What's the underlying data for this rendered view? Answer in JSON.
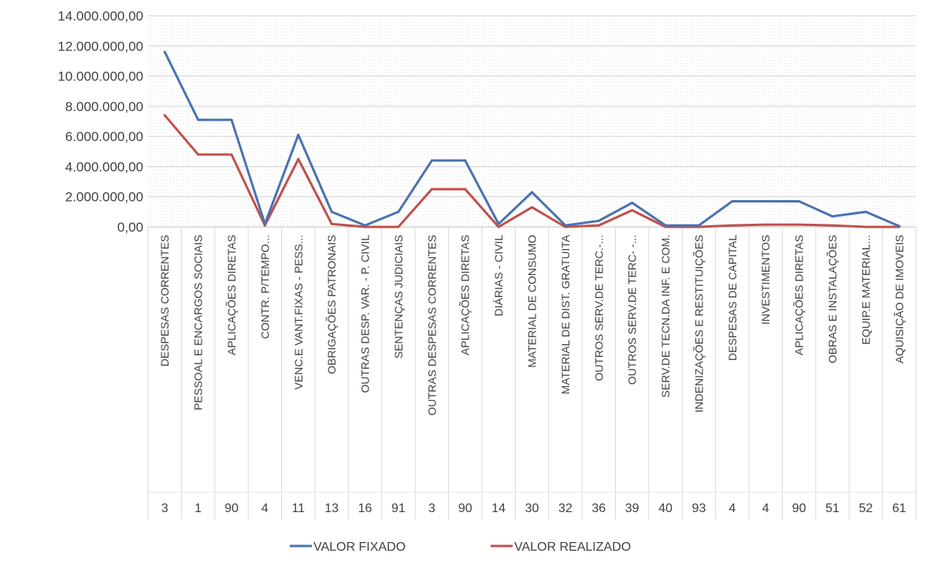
{
  "chart_data": {
    "type": "line",
    "title": "",
    "xlabel": "",
    "ylabel": "",
    "ylim": [
      0,
      14000000
    ],
    "y_ticks": [
      {
        "value": 0,
        "label": "0,00"
      },
      {
        "value": 2000000,
        "label": "2.000.000,00"
      },
      {
        "value": 4000000,
        "label": "4.000.000,00"
      },
      {
        "value": 6000000,
        "label": "6.000.000,00"
      },
      {
        "value": 8000000,
        "label": "8.000.000,00"
      },
      {
        "value": 10000000,
        "label": "10.000.000,00"
      },
      {
        "value": 12000000,
        "label": "12.000.000,00"
      },
      {
        "value": 14000000,
        "label": "14.000.000,00"
      }
    ],
    "grid": true,
    "legend_position": "bottom",
    "categories": [
      {
        "name": "DESPESAS CORRENTES",
        "code": "3"
      },
      {
        "name": "PESSOAL E ENCARGOS SOCIAIS",
        "code": "1"
      },
      {
        "name": "APLICAÇÕES DIRETAS",
        "code": "90"
      },
      {
        "name": "CONTR. P/TEMPO...",
        "code": "4"
      },
      {
        "name": "VENC.E VANT.FIXAS - PESS...",
        "code": "11"
      },
      {
        "name": "OBRIGAÇÕES PATRONAIS",
        "code": "13"
      },
      {
        "name": "OUTRAS DESP. VAR. - P. CIVIL",
        "code": "16"
      },
      {
        "name": "SENTENÇAS JUDICIAIS",
        "code": "91"
      },
      {
        "name": "OUTRAS DESPESAS CORRENTES",
        "code": "3"
      },
      {
        "name": "APLICAÇÕES DIRETAS",
        "code": "90"
      },
      {
        "name": "DIÁRIAS - CIVIL",
        "code": "14"
      },
      {
        "name": "MATERIAL DE CONSUMO",
        "code": "30"
      },
      {
        "name": "MATERIAL DE DIST. GRATUITA",
        "code": "32"
      },
      {
        "name": "OUTROS SERV.DE TERC.-...",
        "code": "36"
      },
      {
        "name": "OUTROS SERV.DE TERC- -...",
        "code": "39"
      },
      {
        "name": "SERV.DE TECN.DA INF. E COM.",
        "code": "40"
      },
      {
        "name": "INDENIZAÇÕES E RESTITUIÇÕES",
        "code": "93"
      },
      {
        "name": "DESPESAS DE CAPITAL",
        "code": "4"
      },
      {
        "name": "INVESTIMENTOS",
        "code": "4"
      },
      {
        "name": "APLICAÇÕES DIRETAS",
        "code": "90"
      },
      {
        "name": "OBRAS E INSTALAÇÕES",
        "code": "51"
      },
      {
        "name": "EQUIP.E MATERIAL...",
        "code": "52"
      },
      {
        "name": "AQUISIÇÃO DE IMOVEIS",
        "code": "61"
      }
    ],
    "series": [
      {
        "name": "VALOR FIXADO",
        "color": "#4a72b0",
        "values": [
          11600000,
          7100000,
          7100000,
          200000,
          6100000,
          1000000,
          100000,
          1000000,
          4400000,
          4400000,
          200000,
          2300000,
          100000,
          400000,
          1600000,
          100000,
          100000,
          1700000,
          1700000,
          1700000,
          700000,
          1000000,
          50000
        ]
      },
      {
        "name": "VALOR REALIZADO",
        "color": "#c0504d",
        "values": [
          7400000,
          4800000,
          4800000,
          100000,
          4500000,
          200000,
          0,
          0,
          2500000,
          2500000,
          0,
          1300000,
          0,
          100000,
          1100000,
          0,
          0,
          100000,
          150000,
          150000,
          100000,
          0,
          0
        ]
      }
    ]
  }
}
